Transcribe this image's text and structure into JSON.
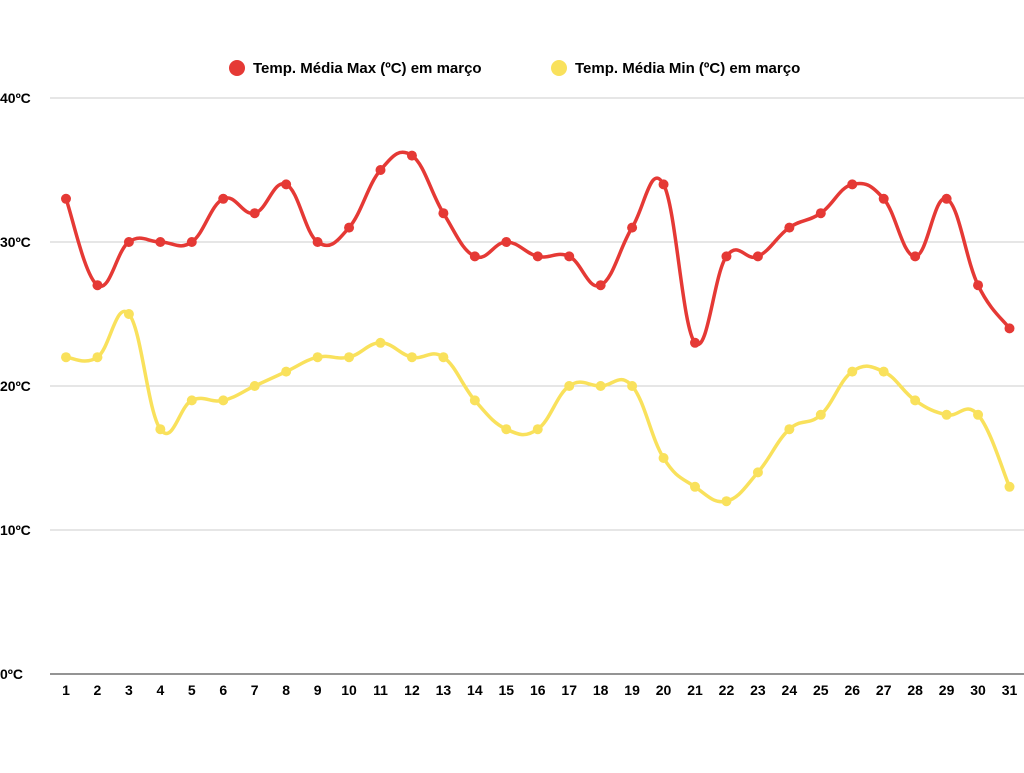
{
  "chart_data": {
    "type": "line",
    "categories": [
      "1",
      "2",
      "3",
      "4",
      "5",
      "6",
      "7",
      "8",
      "9",
      "10",
      "11",
      "12",
      "13",
      "14",
      "15",
      "16",
      "17",
      "18",
      "19",
      "20",
      "21",
      "22",
      "23",
      "24",
      "25",
      "26",
      "27",
      "28",
      "29",
      "30",
      "31"
    ],
    "series": [
      {
        "name": "Temp. Média Max (ºC) em março",
        "color": "#e53935",
        "values": [
          33,
          27,
          30,
          30,
          30,
          33,
          32,
          34,
          30,
          31,
          35,
          36,
          32,
          29,
          30,
          29,
          29,
          27,
          31,
          34,
          23,
          29,
          29,
          31,
          32,
          34,
          33,
          29,
          33,
          27,
          24
        ]
      },
      {
        "name": "Temp. Média Min (ºC) em março",
        "color": "#f9e15c",
        "values": [
          22,
          22,
          25,
          17,
          19,
          19,
          20,
          21,
          22,
          22,
          23,
          22,
          22,
          19,
          17,
          17,
          20,
          20,
          20,
          15,
          13,
          12,
          14,
          17,
          18,
          21,
          21,
          19,
          18,
          18,
          13
        ]
      }
    ],
    "y_ticks": [
      "0ºC",
      "10ºC",
      "20ºC",
      "30ºC",
      "40ºC"
    ],
    "ylim": [
      0,
      40
    ],
    "grid": true,
    "legend_position": "top-center",
    "title": "",
    "xlabel": "",
    "ylabel": ""
  }
}
